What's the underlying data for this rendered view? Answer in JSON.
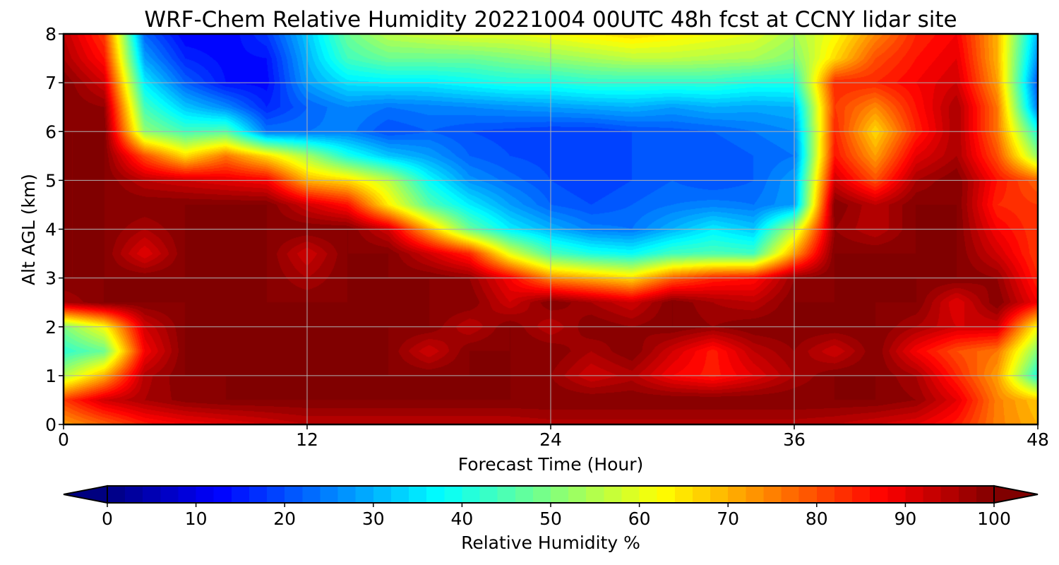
{
  "chart_data": {
    "type": "heatmap",
    "title": "WRF-Chem Relative Humidity 20221004 00UTC 48h fcst at CCNY lidar site",
    "xlabel": "Forecast Time (Hour)",
    "ylabel": "Alt AGL (km)",
    "xlim": [
      0,
      48
    ],
    "ylim": [
      0,
      8
    ],
    "x_ticks": [
      "0",
      "12",
      "24",
      "36",
      "48"
    ],
    "y_ticks": [
      "0",
      "1",
      "2",
      "3",
      "4",
      "5",
      "6",
      "7",
      "8"
    ],
    "grid": true,
    "colorbar": {
      "label": "Relative Humidity %",
      "min": 0,
      "max": 100,
      "ticks": [
        "0",
        "10",
        "20",
        "30",
        "40",
        "50",
        "60",
        "70",
        "80",
        "90",
        "100"
      ],
      "extend": "both",
      "colormap": "jet"
    },
    "hours": [
      0,
      2,
      4,
      6,
      8,
      10,
      12,
      14,
      16,
      18,
      20,
      22,
      24,
      26,
      28,
      30,
      32,
      34,
      36,
      38,
      40,
      42,
      44,
      46,
      48
    ],
    "altitudes_km": [
      0,
      0.5,
      1,
      1.5,
      2,
      2.5,
      3,
      3.5,
      4,
      4.5,
      5,
      5.5,
      6,
      6.5,
      7,
      7.5,
      8
    ],
    "rh_percent": [
      [
        72,
        78,
        85,
        88,
        90,
        92,
        94,
        94,
        94,
        94,
        94,
        94,
        95,
        95,
        95,
        95,
        95,
        95,
        95,
        94,
        92,
        90,
        85,
        75,
        70
      ],
      [
        82,
        92,
        96,
        99,
        100,
        100,
        100,
        100,
        100,
        100,
        100,
        100,
        100,
        100,
        100,
        100,
        100,
        100,
        100,
        100,
        100,
        98,
        90,
        75,
        68
      ],
      [
        55,
        70,
        95,
        100,
        100,
        100,
        100,
        100,
        100,
        100,
        100,
        100,
        98,
        92,
        95,
        88,
        85,
        90,
        96,
        100,
        100,
        96,
        84,
        72,
        40
      ],
      [
        42,
        48,
        88,
        100,
        100,
        100,
        100,
        100,
        100,
        92,
        100,
        100,
        100,
        96,
        100,
        92,
        85,
        94,
        98,
        92,
        100,
        88,
        80,
        76,
        50
      ],
      [
        50,
        62,
        92,
        100,
        100,
        100,
        100,
        100,
        100,
        100,
        94,
        100,
        94,
        100,
        98,
        100,
        98,
        100,
        100,
        100,
        100,
        96,
        92,
        92,
        62
      ],
      [
        96,
        100,
        100,
        100,
        100,
        100,
        100,
        100,
        100,
        100,
        100,
        92,
        100,
        96,
        92,
        100,
        96,
        94,
        100,
        100,
        100,
        100,
        90,
        100,
        88
      ],
      [
        100,
        100,
        100,
        100,
        100,
        100,
        96,
        100,
        100,
        100,
        98,
        88,
        74,
        70,
        66,
        78,
        84,
        86,
        98,
        100,
        100,
        100,
        100,
        98,
        84
      ],
      [
        100,
        100,
        90,
        100,
        100,
        100,
        92,
        100,
        100,
        92,
        84,
        60,
        45,
        40,
        38,
        44,
        45,
        44,
        72,
        100,
        100,
        100,
        100,
        92,
        82
      ],
      [
        100,
        100,
        96,
        100,
        100,
        100,
        100,
        100,
        92,
        70,
        48,
        36,
        30,
        25,
        24,
        30,
        36,
        32,
        56,
        98,
        94,
        100,
        100,
        88,
        82
      ],
      [
        100,
        100,
        100,
        100,
        100,
        100,
        92,
        86,
        64,
        46,
        36,
        28,
        22,
        20,
        22,
        24,
        25,
        24,
        28,
        100,
        94,
        100,
        100,
        84,
        82
      ],
      [
        100,
        100,
        94,
        92,
        90,
        88,
        70,
        66,
        56,
        38,
        27,
        23,
        20,
        18,
        20,
        22,
        20,
        22,
        28,
        92,
        80,
        96,
        100,
        86,
        78
      ],
      [
        100,
        100,
        80,
        66,
        76,
        66,
        54,
        40,
        32,
        28,
        22,
        20,
        19,
        18,
        20,
        21,
        20,
        22,
        24,
        86,
        72,
        90,
        96,
        80,
        52
      ],
      [
        100,
        100,
        52,
        44,
        46,
        24,
        24,
        25,
        20,
        22,
        20,
        19,
        18,
        18,
        20,
        21,
        22,
        24,
        26,
        84,
        66,
        84,
        96,
        76,
        40
      ],
      [
        100,
        98,
        44,
        32,
        26,
        16,
        22,
        26,
        24,
        25,
        26,
        27,
        28,
        29,
        30,
        28,
        30,
        29,
        30,
        82,
        74,
        86,
        96,
        76,
        24
      ],
      [
        100,
        92,
        36,
        22,
        14,
        13,
        28,
        35,
        36,
        36,
        38,
        40,
        40,
        42,
        42,
        42,
        42,
        40,
        40,
        84,
        84,
        88,
        92,
        72,
        20
      ],
      [
        96,
        86,
        28,
        16,
        13,
        14,
        30,
        44,
        48,
        48,
        48,
        50,
        52,
        54,
        56,
        56,
        55,
        54,
        50,
        66,
        80,
        86,
        90,
        70,
        26
      ],
      [
        94,
        82,
        22,
        12,
        12,
        18,
        32,
        48,
        56,
        58,
        60,
        60,
        62,
        64,
        66,
        64,
        62,
        60,
        54,
        62,
        74,
        84,
        88,
        70,
        30
      ]
    ]
  }
}
